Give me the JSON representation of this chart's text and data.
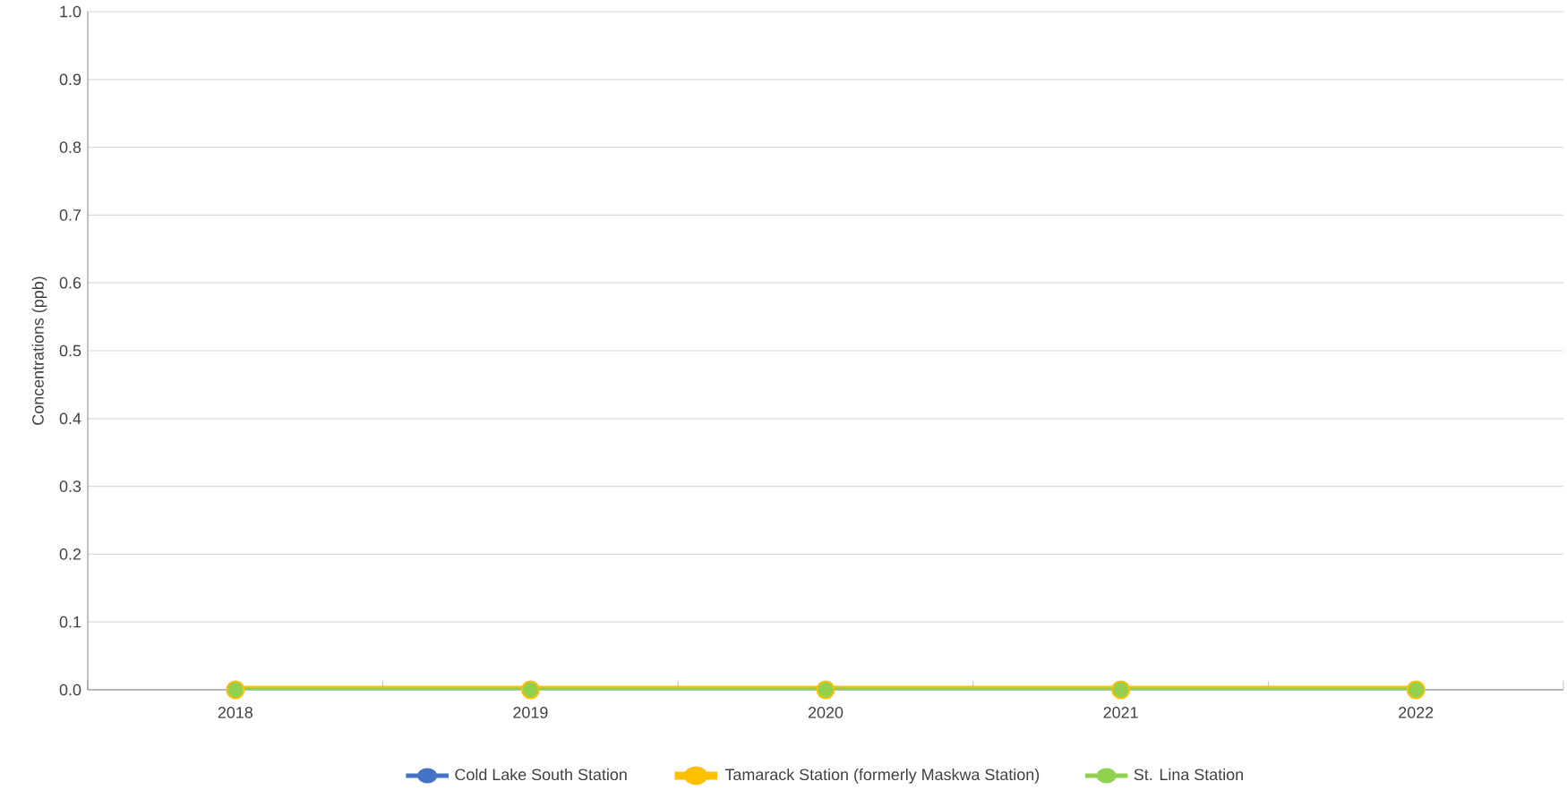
{
  "chart_data": {
    "type": "line",
    "ylabel": "Concentrations (ppb)",
    "categories": [
      "2018",
      "2019",
      "2020",
      "2021",
      "2022"
    ],
    "series": [
      {
        "name": "Cold Lake South Station",
        "color": "#4472c4",
        "values": [
          null,
          null,
          null,
          null,
          null
        ]
      },
      {
        "name": "Tamarack Station (formerly Maskwa Station)",
        "color": "#ffc000",
        "values": [
          0,
          0,
          0,
          0,
          0
        ]
      },
      {
        "name": "St. Lina Station",
        "color": "#92d050",
        "values": [
          0,
          0,
          0,
          0,
          0
        ]
      }
    ],
    "ylim": [
      0,
      1.0
    ],
    "yticks": [
      {
        "value": 0,
        "label": "0.0"
      },
      0.1,
      0.2,
      0.3,
      0.4,
      0.5,
      0.6,
      0.7,
      0.8,
      0.9,
      {
        "value": 1.0,
        "label": "1.0"
      }
    ],
    "grid": "y",
    "legend": "bottom",
    "marker": "circle",
    "line_style": "solid"
  }
}
